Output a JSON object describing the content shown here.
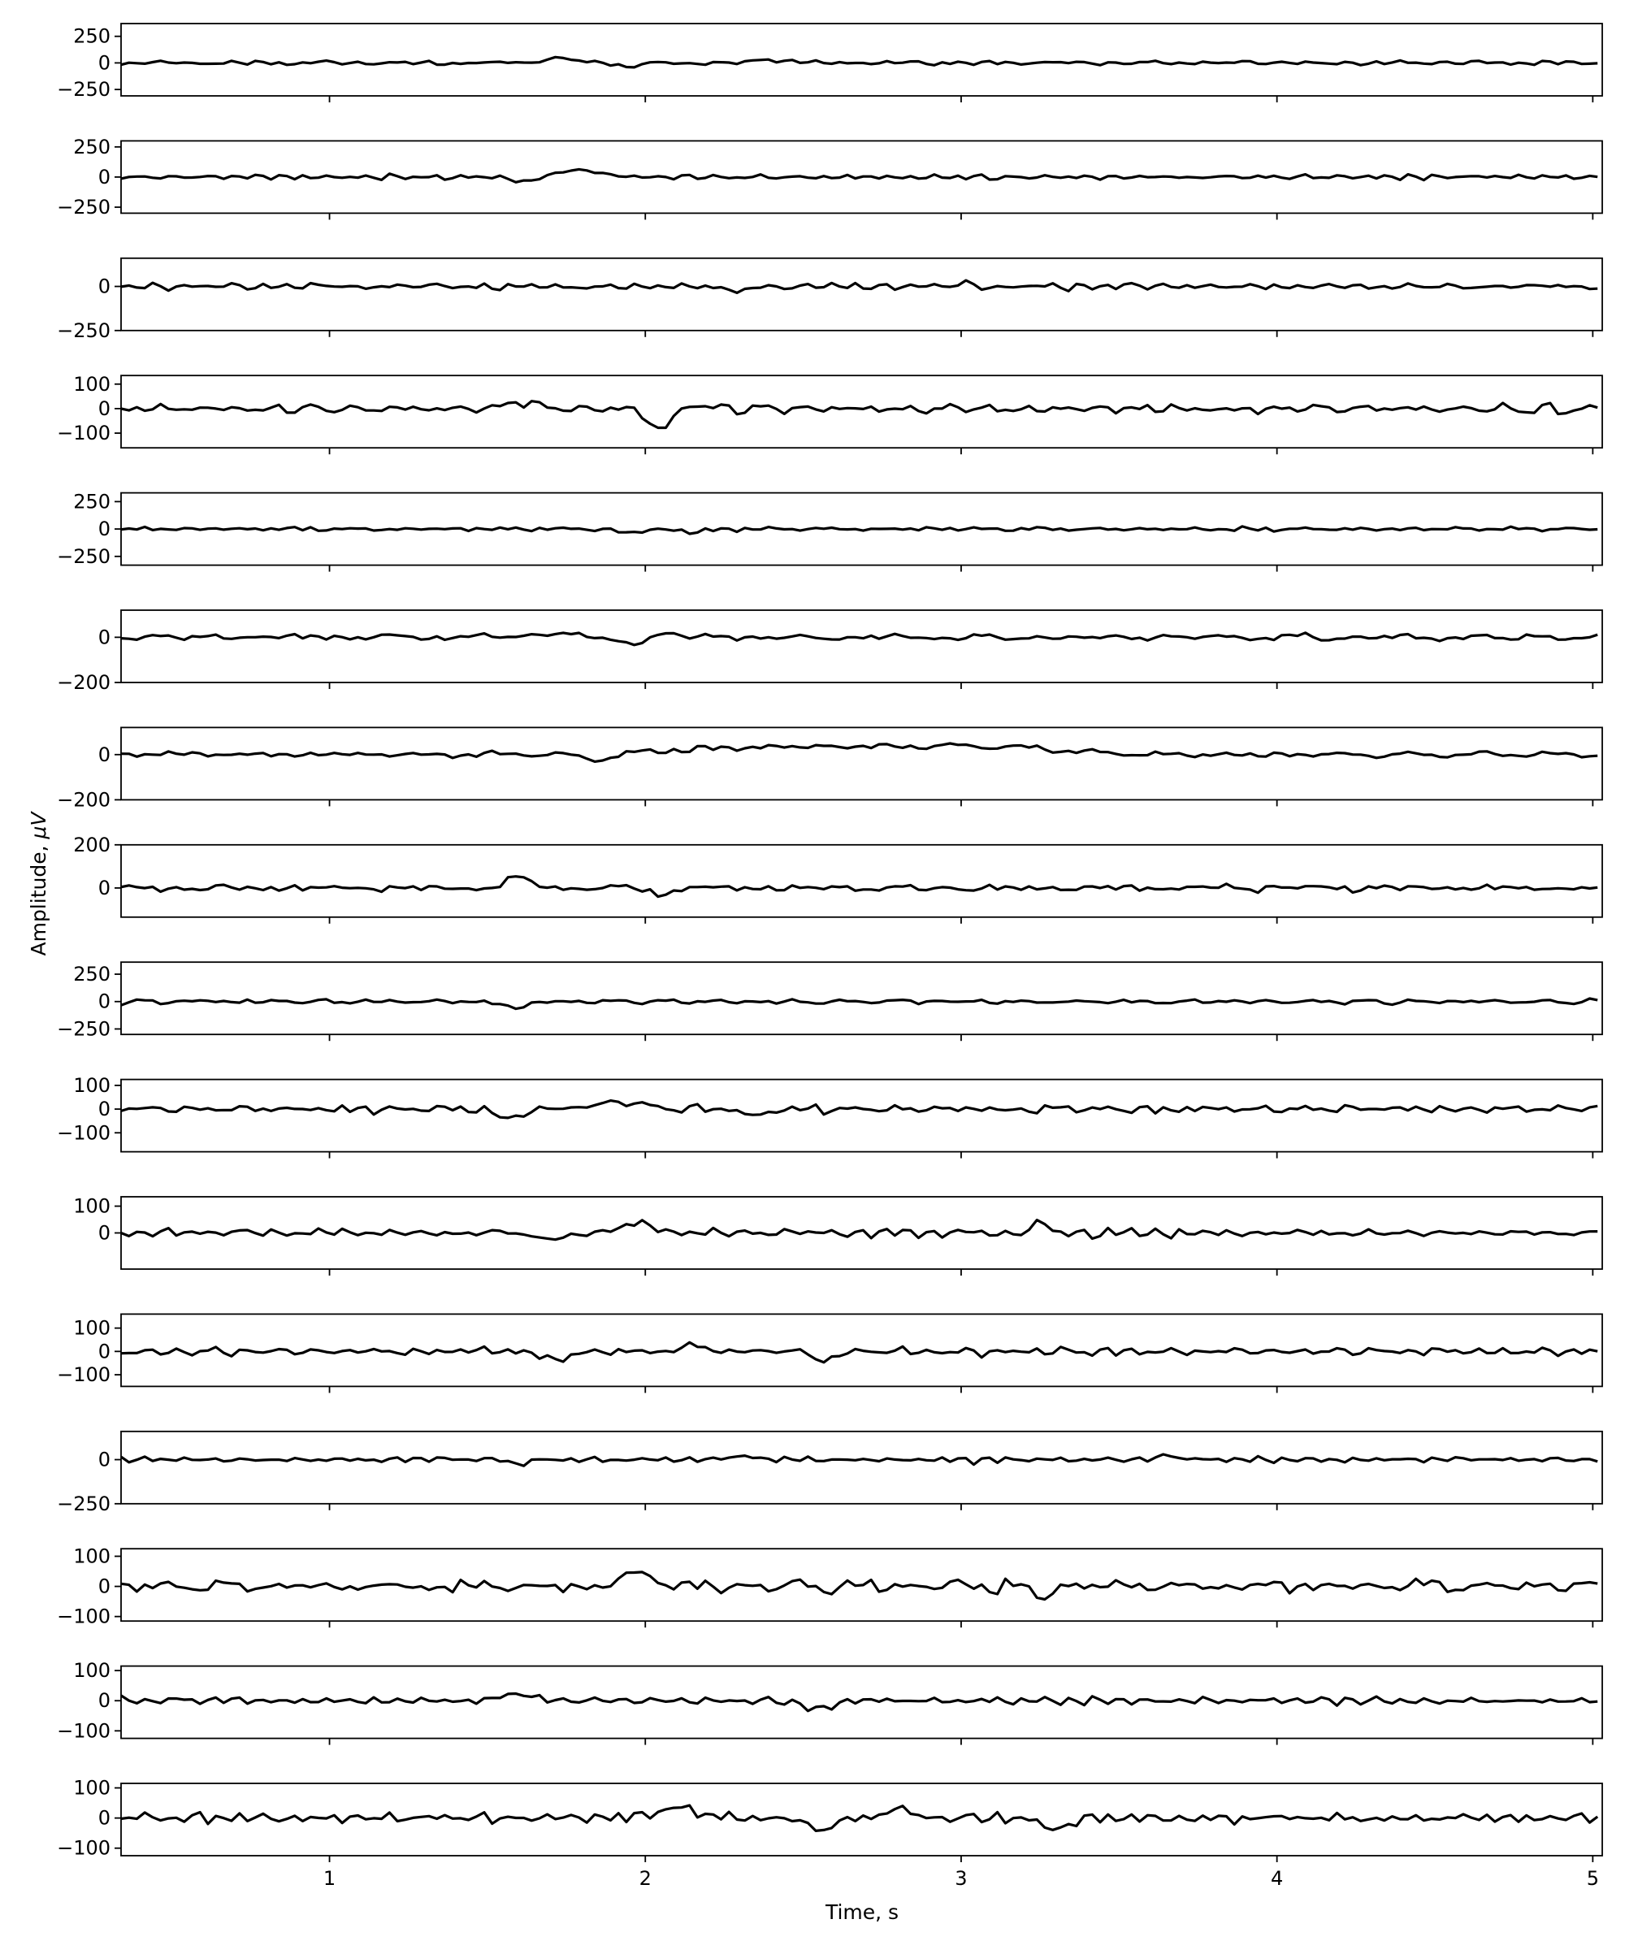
{
  "chart_data": {
    "type": "line",
    "xlabel": "Time, s",
    "ylabel": "Amplitude, $\\mu V$",
    "xlim": [
      0.34,
      5.03
    ],
    "x_ticks": [
      1,
      2,
      3,
      4,
      5
    ],
    "x_tick_labels": [
      "1",
      "2",
      "3",
      "4",
      "5"
    ],
    "line_color": "#000000",
    "grid": false,
    "legend": "none",
    "sample_rate_hz": 40,
    "channels": [
      {
        "ylim": [
          -310,
          370
        ],
        "yticks": [
          -250,
          0,
          250
        ],
        "ytick_labels": [
          "−250",
          "0",
          "250"
        ],
        "amp": 22,
        "events": [
          {
            "t": 1.72,
            "a": 40,
            "w": 0.08
          },
          {
            "t": 1.95,
            "a": -35,
            "w": 0.05
          },
          {
            "t": 2.4,
            "a": 30,
            "w": 0.08
          }
        ]
      },
      {
        "ylim": [
          -300,
          300
        ],
        "yticks": [
          -250,
          0,
          250
        ],
        "ytick_labels": [
          "−250",
          "0",
          "250"
        ],
        "amp": 22,
        "events": [
          {
            "t": 1.62,
            "a": -35,
            "w": 0.07
          },
          {
            "t": 1.78,
            "a": 60,
            "w": 0.1
          }
        ]
      },
      {
        "ylim": [
          -250,
          160
        ],
        "yticks": [
          -250,
          0
        ],
        "ytick_labels": [
          "−250",
          "0"
        ],
        "amp": 20,
        "events": [
          {
            "t": 2.28,
            "a": -25,
            "w": 0.06
          },
          {
            "t": 3.02,
            "a": 25,
            "w": 0.03
          }
        ]
      },
      {
        "ylim": [
          -160,
          135
        ],
        "yticks": [
          -100,
          0,
          100
        ],
        "ytick_labels": [
          "−100",
          "0",
          "100"
        ],
        "amp": 20,
        "events": [
          {
            "t": 1.6,
            "a": 28,
            "w": 0.06
          },
          {
            "t": 2.05,
            "a": -75,
            "w": 0.06
          },
          {
            "t": 2.15,
            "a": 20,
            "w": 0.04
          }
        ]
      },
      {
        "ylim": [
          -330,
          330
        ],
        "yticks": [
          -250,
          0,
          250
        ],
        "ytick_labels": [
          "−250",
          "0",
          "250"
        ],
        "amp": 20,
        "events": [
          {
            "t": 1.95,
            "a": -35,
            "w": 0.05
          },
          {
            "t": 2.15,
            "a": -30,
            "w": 0.06
          }
        ]
      },
      {
        "ylim": [
          -200,
          120
        ],
        "yticks": [
          -200,
          0
        ],
        "ytick_labels": [
          "−200",
          "0"
        ],
        "amp": 16,
        "events": [
          {
            "t": 1.7,
            "a": 15,
            "w": 0.1
          },
          {
            "t": 1.95,
            "a": -28,
            "w": 0.05
          },
          {
            "t": 2.08,
            "a": 22,
            "w": 0.04
          }
        ]
      },
      {
        "ylim": [
          -200,
          120
        ],
        "yticks": [
          -200,
          0
        ],
        "ytick_labels": [
          "−200",
          "0"
        ],
        "amp": 14,
        "events": [
          {
            "t": 1.85,
            "a": -25,
            "w": 0.08
          },
          {
            "t": 2.5,
            "a": 35,
            "w": 0.5
          },
          {
            "t": 3.1,
            "a": 30,
            "w": 0.3
          }
        ]
      },
      {
        "ylim": [
          -135,
          200
        ],
        "yticks": [
          0,
          200
        ],
        "ytick_labels": [
          "0",
          "200"
        ],
        "amp": 16,
        "events": [
          {
            "t": 1.6,
            "a": 50,
            "w": 0.05
          },
          {
            "t": 2.05,
            "a": -35,
            "w": 0.04
          }
        ]
      },
      {
        "ylim": [
          -300,
          360
        ],
        "yticks": [
          -250,
          0,
          250
        ],
        "ytick_labels": [
          "−250",
          "0",
          "250"
        ],
        "amp": 22,
        "events": [
          {
            "t": 1.58,
            "a": -50,
            "w": 0.06
          }
        ]
      },
      {
        "ylim": [
          -180,
          125
        ],
        "yticks": [
          -100,
          0,
          100
        ],
        "ytick_labels": [
          "−100",
          "0",
          "100"
        ],
        "amp": 18,
        "events": [
          {
            "t": 1.57,
            "a": -40,
            "w": 0.06
          },
          {
            "t": 1.92,
            "a": 30,
            "w": 0.1
          },
          {
            "t": 2.35,
            "a": -25,
            "w": 0.06
          }
        ]
      },
      {
        "ylim": [
          -135,
          135
        ],
        "yticks": [
          0,
          100
        ],
        "ytick_labels": [
          "0",
          "100"
        ],
        "amp": 18,
        "events": [
          {
            "t": 1.72,
            "a": -25,
            "w": 0.08
          },
          {
            "t": 1.97,
            "a": 35,
            "w": 0.08
          },
          {
            "t": 3.25,
            "a": 40,
            "w": 0.03
          }
        ]
      },
      {
        "ylim": [
          -150,
          160
        ],
        "yticks": [
          -100,
          0,
          100
        ],
        "ytick_labels": [
          "−100",
          "0",
          "100"
        ],
        "amp": 18,
        "events": [
          {
            "t": 1.72,
            "a": -30,
            "w": 0.07
          },
          {
            "t": 2.57,
            "a": -40,
            "w": 0.05
          },
          {
            "t": 2.15,
            "a": 25,
            "w": 0.05
          }
        ]
      },
      {
        "ylim": [
          -250,
          160
        ],
        "yticks": [
          -250,
          0
        ],
        "ytick_labels": [
          "−250",
          "0"
        ],
        "amp": 16,
        "events": [
          {
            "t": 2.3,
            "a": 20,
            "w": 0.05
          },
          {
            "t": 1.6,
            "a": -25,
            "w": 0.04
          },
          {
            "t": 3.66,
            "a": 30,
            "w": 0.03
          }
        ]
      },
      {
        "ylim": [
          -115,
          125
        ],
        "yticks": [
          -100,
          0,
          100
        ],
        "ytick_labels": [
          "−100",
          "0",
          "100"
        ],
        "amp": 22,
        "events": [
          {
            "t": 1.98,
            "a": 40,
            "w": 0.08
          },
          {
            "t": 3.25,
            "a": -35,
            "w": 0.04
          }
        ]
      },
      {
        "ylim": [
          -125,
          115
        ],
        "yticks": [
          -100,
          0,
          100
        ],
        "ytick_labels": [
          "−100",
          "0",
          "100"
        ],
        "amp": 16,
        "events": [
          {
            "t": 1.6,
            "a": 25,
            "w": 0.06
          },
          {
            "t": 2.55,
            "a": -30,
            "w": 0.06
          }
        ]
      },
      {
        "ylim": [
          -125,
          115
        ],
        "yticks": [
          -100,
          0,
          100
        ],
        "ytick_labels": [
          "−100",
          "0",
          "100"
        ],
        "amp": 18,
        "events": [
          {
            "t": 2.1,
            "a": 30,
            "w": 0.1
          },
          {
            "t": 2.55,
            "a": -40,
            "w": 0.06
          },
          {
            "t": 2.8,
            "a": 35,
            "w": 0.05
          },
          {
            "t": 3.3,
            "a": -40,
            "w": 0.05
          }
        ]
      }
    ]
  }
}
